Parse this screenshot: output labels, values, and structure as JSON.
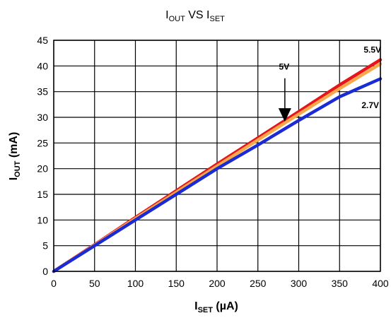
{
  "chart_data": {
    "type": "line",
    "title": {
      "main": "I",
      "sub1": "OUT",
      "mid": " VS I",
      "sub2": "SET"
    },
    "xlabel": {
      "main": "I",
      "sub": "SET",
      "rest": " (µA)"
    },
    "ylabel": {
      "main": "I",
      "sub": "OUT",
      "rest": " (mA)"
    },
    "xlim": [
      0,
      400
    ],
    "ylim": [
      0,
      45
    ],
    "x_ticks": [
      "0",
      "50",
      "100",
      "150",
      "200",
      "250",
      "300",
      "350",
      "400"
    ],
    "y_ticks": [
      "0",
      "5",
      "10",
      "15",
      "20",
      "25",
      "30",
      "35",
      "40",
      "45"
    ],
    "grid": true,
    "series": [
      {
        "name": "5.5V",
        "color": "#e8141c",
        "points": [
          [
            0,
            0
          ],
          [
            50,
            5.2
          ],
          [
            100,
            10.5
          ],
          [
            150,
            15.7
          ],
          [
            200,
            20.9
          ],
          [
            250,
            26.0
          ],
          [
            300,
            31.1
          ],
          [
            350,
            36.3
          ],
          [
            400,
            41.2
          ]
        ]
      },
      {
        "name": "5V",
        "color": "#f7a84b",
        "points": [
          [
            0,
            0
          ],
          [
            50,
            5.1
          ],
          [
            100,
            10.3
          ],
          [
            150,
            15.4
          ],
          [
            200,
            20.5
          ],
          [
            250,
            25.6
          ],
          [
            300,
            30.6
          ],
          [
            350,
            35.6
          ],
          [
            400,
            40.4
          ]
        ]
      },
      {
        "name": "2.7V",
        "color": "#1a2bd6",
        "points": [
          [
            0,
            0
          ],
          [
            50,
            5.0
          ],
          [
            100,
            10.0
          ],
          [
            150,
            15.0
          ],
          [
            200,
            20.0
          ],
          [
            250,
            24.6
          ],
          [
            300,
            29.4
          ],
          [
            350,
            34.0
          ],
          [
            400,
            37.5
          ]
        ]
      }
    ],
    "annotations": {
      "label_5_5v": "5.5V",
      "label_5v": "5V",
      "label_2_7v": "2.7V",
      "arrow_target": [
        283,
        29.3
      ]
    }
  }
}
